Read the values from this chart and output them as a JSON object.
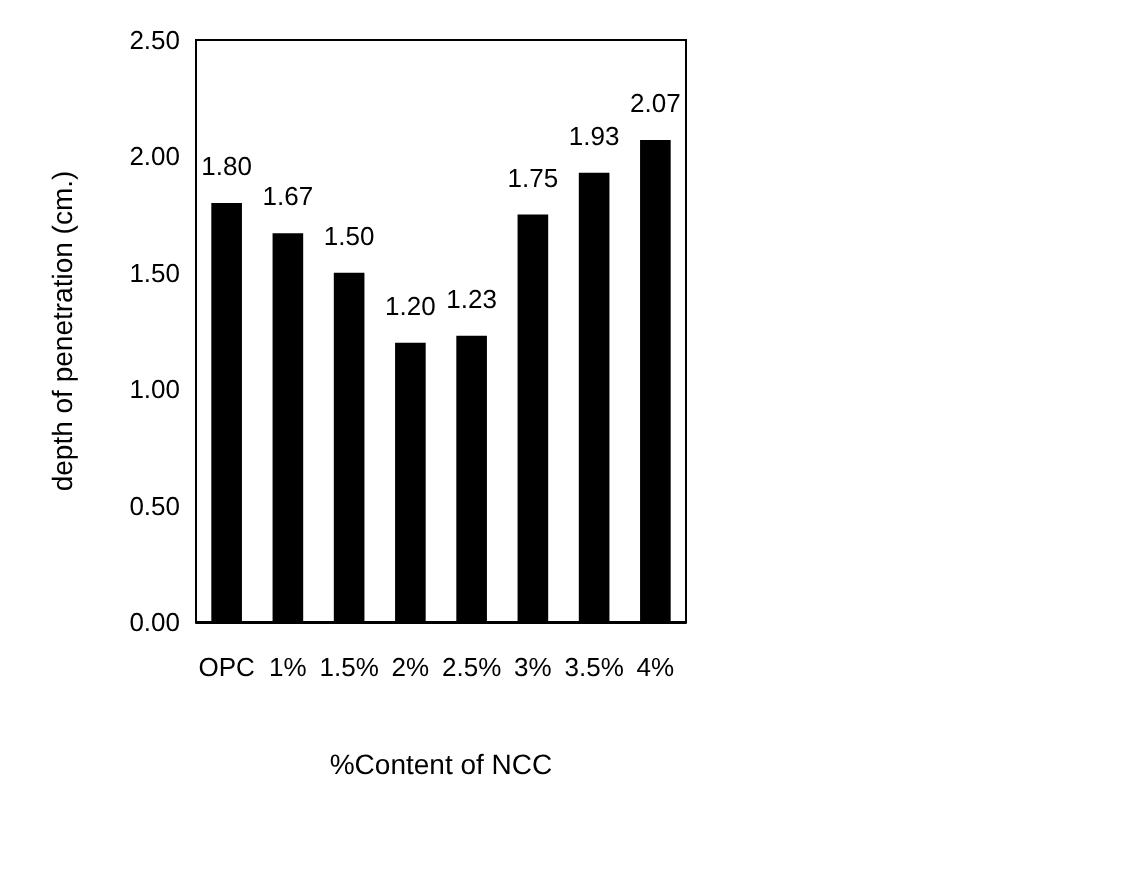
{
  "chart_data": {
    "type": "bar",
    "xlabel": "%Content of NCC",
    "ylabel": "depth of penetration (cm.)",
    "categories": [
      "OPC",
      "1%",
      "1.5%",
      "2%",
      "2.5%",
      "3%",
      "3.5%",
      "4%"
    ],
    "values": [
      1.8,
      1.67,
      1.5,
      1.2,
      1.23,
      1.75,
      1.93,
      2.07
    ],
    "value_labels": [
      "1.80",
      "1.67",
      "1.50",
      "1.20",
      "1.23",
      "1.75",
      "1.93",
      "2.07"
    ],
    "color": "#000000",
    "ylim": [
      0,
      2.5
    ],
    "yticks": [
      {
        "value": 0,
        "label": "0.00"
      },
      {
        "value": 0.5,
        "label": "0.50"
      },
      {
        "value": 1,
        "label": "1.00"
      },
      {
        "value": 1.5,
        "label": "1.50"
      },
      {
        "value": 2,
        "label": "2.00"
      },
      {
        "value": 2.5,
        "label": "2.50"
      }
    ],
    "grid": false
  }
}
